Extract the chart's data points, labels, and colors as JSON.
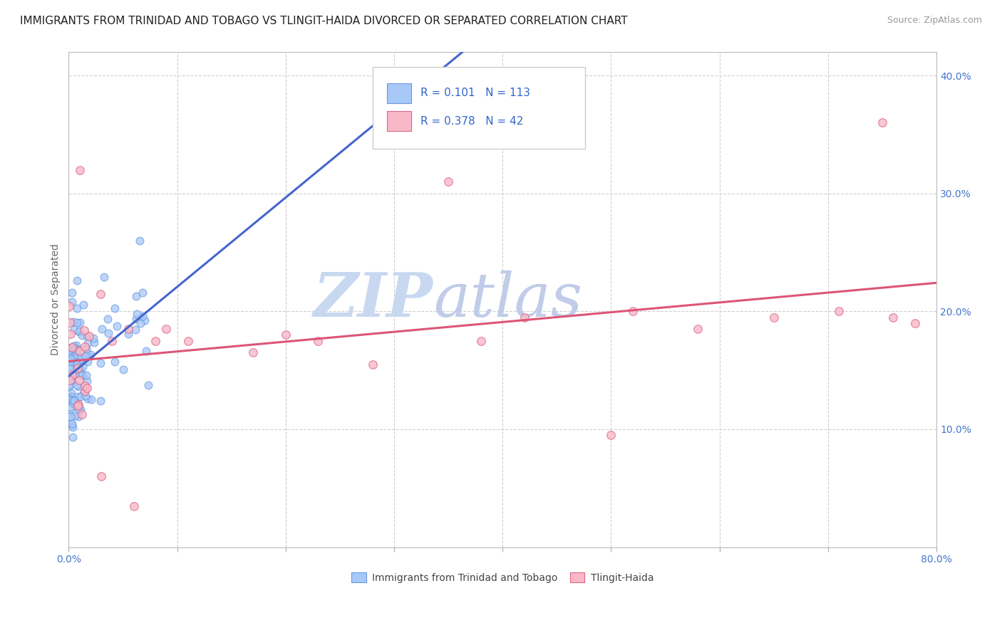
{
  "title": "IMMIGRANTS FROM TRINIDAD AND TOBAGO VS TLINGIT-HAIDA DIVORCED OR SEPARATED CORRELATION CHART",
  "source": "Source: ZipAtlas.com",
  "ylabel": "Divorced or Separated",
  "xlim": [
    0.0,
    0.8
  ],
  "ylim": [
    0.0,
    0.42
  ],
  "xticks": [
    0.0,
    0.1,
    0.2,
    0.3,
    0.4,
    0.5,
    0.6,
    0.7,
    0.8
  ],
  "yticks": [
    0.0,
    0.1,
    0.2,
    0.3,
    0.4
  ],
  "ytick_labels": [
    "",
    "10.0%",
    "20.0%",
    "30.0%",
    "40.0%"
  ],
  "xtick_labels": [
    "0.0%",
    "",
    "",
    "",
    "",
    "",
    "",
    "",
    "80.0%"
  ],
  "series1_color": "#a8c8f8",
  "series1_edge": "#6699dd",
  "series2_color": "#f8b8c8",
  "series2_edge": "#dd6688",
  "series1_label": "Immigrants from Trinidad and Tobago",
  "series2_label": "Tlingit-Haida",
  "series1_R": 0.101,
  "series1_N": 113,
  "series2_R": 0.378,
  "series2_N": 42,
  "trend_color1": "#4466cc",
  "trend_color2": "#dd5577",
  "watermark": "ZIPatlas",
  "watermark_color_zip": "#aabbdd",
  "watermark_color_atlas": "#aabbcc",
  "background_color": "#ffffff",
  "grid_color": "#cccccc",
  "title_fontsize": 11,
  "legend_fontsize": 11,
  "axis_fontsize": 10
}
